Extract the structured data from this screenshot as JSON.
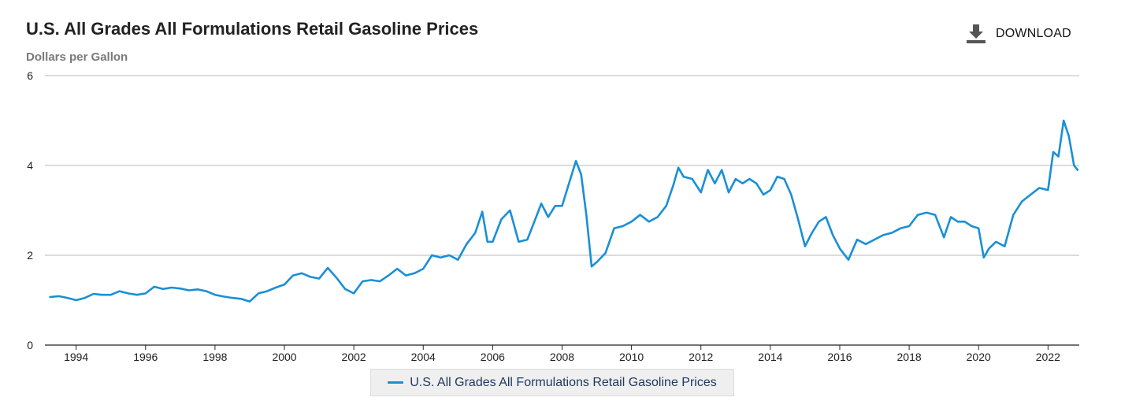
{
  "header": {
    "title": "U.S. All Grades All Formulations Retail Gasoline Prices",
    "subtitle": "Dollars per Gallon",
    "download_label": "DOWNLOAD"
  },
  "colors": {
    "series": "#1a8fd6",
    "grid": "#b8b8b8",
    "axis": "#222222"
  },
  "chart_data": {
    "type": "line",
    "title": "U.S. All Grades All Formulations Retail Gasoline Prices",
    "ylabel": "Dollars per Gallon",
    "xlabel": "",
    "ylim": [
      0,
      6
    ],
    "xlim": [
      1993.1,
      2022.9
    ],
    "y_ticks": [
      0,
      2,
      4,
      6
    ],
    "x_ticks": [
      1994,
      1996,
      1998,
      2000,
      2002,
      2004,
      2006,
      2008,
      2010,
      2012,
      2014,
      2016,
      2018,
      2020,
      2022
    ],
    "grid": true,
    "legend_position": "bottom-center",
    "series": [
      {
        "name": "U.S. All Grades All Formulations Retail Gasoline Prices",
        "x": [
          1993.25,
          1993.5,
          1993.75,
          1994.0,
          1994.25,
          1994.5,
          1994.75,
          1995.0,
          1995.25,
          1995.5,
          1995.75,
          1996.0,
          1996.25,
          1996.5,
          1996.75,
          1997.0,
          1997.25,
          1997.5,
          1997.75,
          1998.0,
          1998.25,
          1998.5,
          1998.75,
          1999.0,
          1999.25,
          1999.5,
          1999.75,
          2000.0,
          2000.25,
          2000.5,
          2000.75,
          2001.0,
          2001.25,
          2001.5,
          2001.75,
          2002.0,
          2002.25,
          2002.5,
          2002.75,
          2003.0,
          2003.25,
          2003.5,
          2003.75,
          2004.0,
          2004.25,
          2004.5,
          2004.75,
          2005.0,
          2005.25,
          2005.5,
          2005.7,
          2005.85,
          2006.0,
          2006.25,
          2006.5,
          2006.75,
          2007.0,
          2007.2,
          2007.4,
          2007.6,
          2007.8,
          2008.0,
          2008.2,
          2008.4,
          2008.55,
          2008.7,
          2008.85,
          2009.0,
          2009.25,
          2009.5,
          2009.75,
          2010.0,
          2010.25,
          2010.5,
          2010.75,
          2011.0,
          2011.2,
          2011.35,
          2011.5,
          2011.75,
          2012.0,
          2012.2,
          2012.4,
          2012.6,
          2012.8,
          2013.0,
          2013.2,
          2013.4,
          2013.6,
          2013.8,
          2014.0,
          2014.2,
          2014.4,
          2014.6,
          2014.8,
          2015.0,
          2015.2,
          2015.4,
          2015.6,
          2015.8,
          2016.0,
          2016.25,
          2016.5,
          2016.75,
          2017.0,
          2017.25,
          2017.5,
          2017.75,
          2018.0,
          2018.25,
          2018.5,
          2018.75,
          2019.0,
          2019.2,
          2019.4,
          2019.6,
          2019.8,
          2020.0,
          2020.15,
          2020.3,
          2020.5,
          2020.75,
          2021.0,
          2021.25,
          2021.5,
          2021.75,
          2022.0,
          2022.15,
          2022.3,
          2022.45,
          2022.6,
          2022.75,
          2022.85
        ],
        "values": [
          1.07,
          1.09,
          1.05,
          1.0,
          1.05,
          1.14,
          1.12,
          1.12,
          1.2,
          1.15,
          1.12,
          1.15,
          1.3,
          1.25,
          1.28,
          1.26,
          1.22,
          1.24,
          1.2,
          1.12,
          1.08,
          1.05,
          1.03,
          0.97,
          1.15,
          1.2,
          1.28,
          1.35,
          1.55,
          1.6,
          1.52,
          1.48,
          1.72,
          1.5,
          1.25,
          1.15,
          1.42,
          1.45,
          1.42,
          1.55,
          1.7,
          1.55,
          1.6,
          1.7,
          2.0,
          1.95,
          2.0,
          1.9,
          2.25,
          2.5,
          2.97,
          2.3,
          2.3,
          2.8,
          3.0,
          2.3,
          2.35,
          2.75,
          3.15,
          2.85,
          3.1,
          3.1,
          3.6,
          4.1,
          3.8,
          2.9,
          1.75,
          1.85,
          2.05,
          2.6,
          2.65,
          2.75,
          2.9,
          2.75,
          2.85,
          3.1,
          3.55,
          3.95,
          3.75,
          3.7,
          3.4,
          3.9,
          3.6,
          3.9,
          3.4,
          3.7,
          3.6,
          3.7,
          3.6,
          3.35,
          3.45,
          3.75,
          3.7,
          3.35,
          2.8,
          2.2,
          2.5,
          2.75,
          2.85,
          2.45,
          2.15,
          1.9,
          2.35,
          2.25,
          2.35,
          2.45,
          2.5,
          2.6,
          2.65,
          2.9,
          2.95,
          2.9,
          2.4,
          2.85,
          2.75,
          2.75,
          2.65,
          2.6,
          1.95,
          2.15,
          2.3,
          2.2,
          2.9,
          3.2,
          3.35,
          3.5,
          3.45,
          4.3,
          4.2,
          5.0,
          4.65,
          4.0,
          3.9
        ]
      }
    ]
  }
}
